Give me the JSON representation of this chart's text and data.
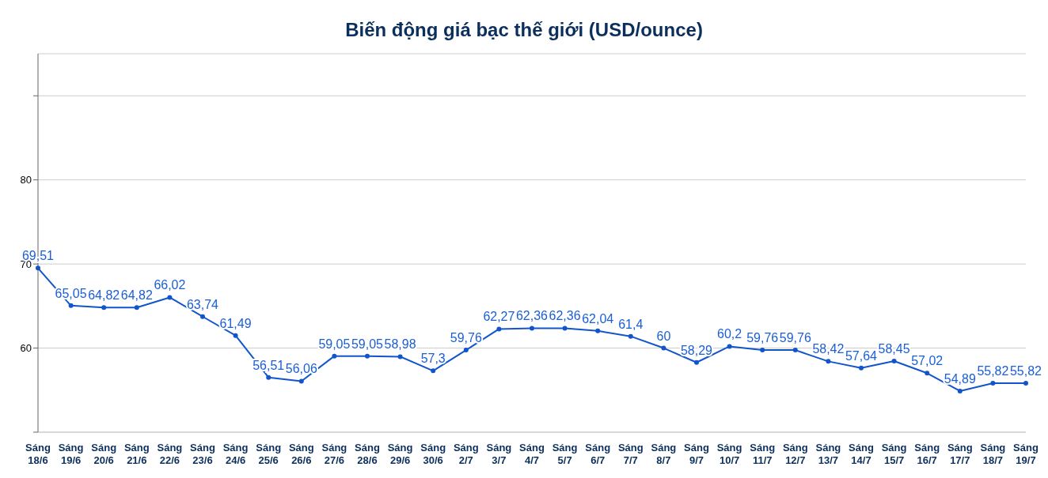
{
  "chart_data": {
    "type": "line",
    "title": "Biến động giá bạc thế giới (USD/ounce)",
    "categories": [
      "Sáng 18/6",
      "Sáng 19/6",
      "Sáng 20/6",
      "Sáng 21/6",
      "Sáng 22/6",
      "Sáng 23/6",
      "Sáng 24/6",
      "Sáng 25/6",
      "Sáng 26/6",
      "Sáng 27/6",
      "Sáng 28/6",
      "Sáng 29/6",
      "Sáng 30/6",
      "Sáng 2/7",
      "Sáng 3/7",
      "Sáng 4/7",
      "Sáng 5/7",
      "Sáng 6/7",
      "Sáng 7/7",
      "Sáng 8/7",
      "Sáng 9/7",
      "Sáng 10/7",
      "Sáng 11/7",
      "Sáng 12/7",
      "Sáng 13/7",
      "Sáng 14/7",
      "Sáng 15/7",
      "Sáng 16/7",
      "Sáng 17/7",
      "Sáng 18/7",
      "Sáng 19/7"
    ],
    "series": [
      {
        "color": "#1155cc",
        "values": [
          69.51,
          65.05,
          64.82,
          64.82,
          66.02,
          63.74,
          61.49,
          56.51,
          56.06,
          59.05,
          59.05,
          58.98,
          57.3,
          59.76,
          62.27,
          62.36,
          62.36,
          62.04,
          61.4,
          60,
          58.29,
          60.2,
          59.76,
          59.76,
          58.42,
          57.64,
          58.45,
          57.02,
          54.89,
          55.82,
          55.82
        ],
        "value_labels": [
          "69,51",
          "65,05",
          "64,82",
          "64,82",
          "66,02",
          "63,74",
          "61,49",
          "56,51",
          "56,06",
          "59,05",
          "59,05",
          "58,98",
          "57,3",
          "59,76",
          "62,27",
          "62,36",
          "62,36",
          "62,04",
          "61,4",
          "60",
          "58,29",
          "60,2",
          "59,76",
          "59,76",
          "58,42",
          "57,64",
          "58,45",
          "57,02",
          "54,89",
          "55,82",
          "55,82"
        ]
      }
    ],
    "ylim": [
      50,
      95
    ],
    "yticks": [
      {
        "value": 50,
        "label": null
      },
      60,
      70,
      80,
      {
        "value": 90,
        "label": null
      }
    ],
    "grid": "y",
    "marker": "circle",
    "line_style": "solid",
    "legend": false
  }
}
